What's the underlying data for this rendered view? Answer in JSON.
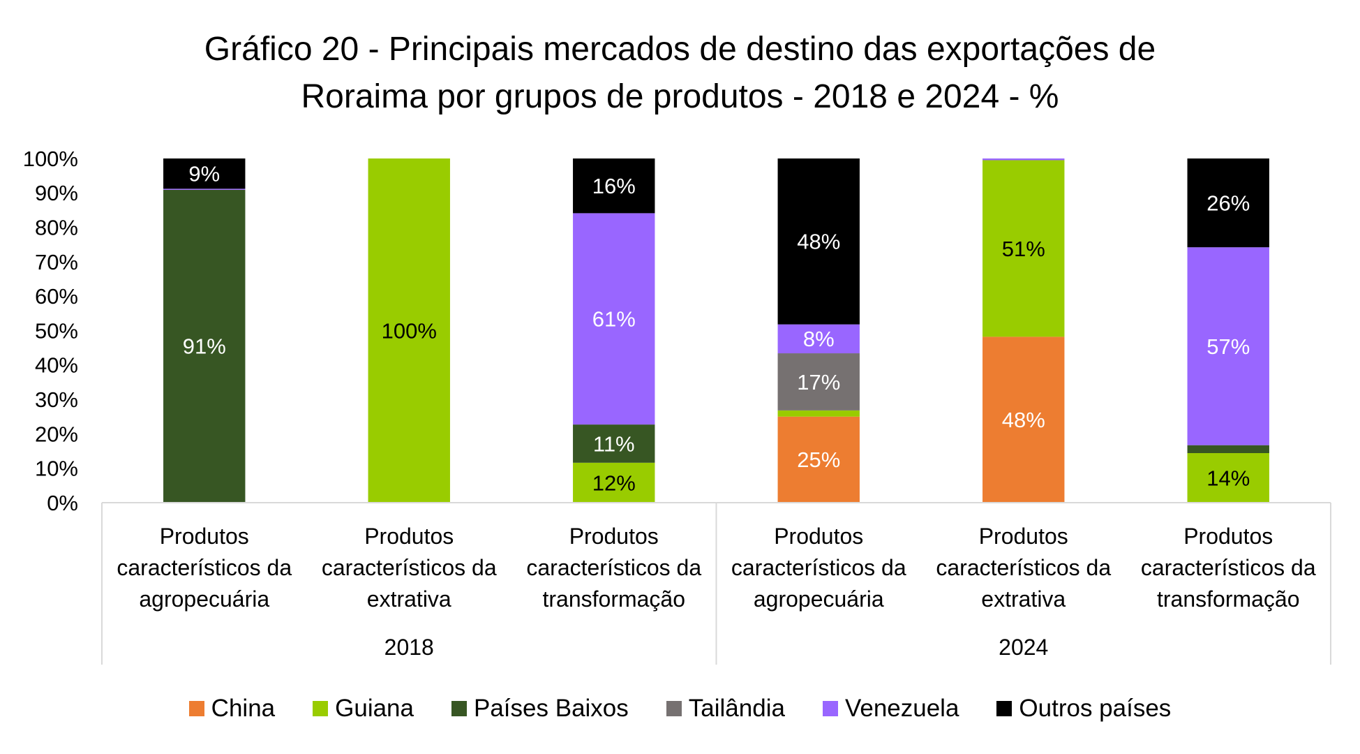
{
  "chart_data": {
    "type": "bar",
    "stacked": true,
    "title": {
      "line1": "Gráfico 20 - Principais mercados de destino das exportações de",
      "line2": "Roraima por grupos de produtos - 2018 e 2024 - %"
    },
    "xlabel": "",
    "ylabel": "",
    "ylim": [
      0,
      100
    ],
    "grid": false,
    "legend_position": "bottom",
    "yticks": [
      {
        "value": 0,
        "label": "0%"
      },
      {
        "value": 10,
        "label": "10%"
      },
      {
        "value": 20,
        "label": "20%"
      },
      {
        "value": 30,
        "label": "30%"
      },
      {
        "value": 40,
        "label": "40%"
      },
      {
        "value": 50,
        "label": "50%"
      },
      {
        "value": 60,
        "label": "60%"
      },
      {
        "value": 70,
        "label": "70%"
      },
      {
        "value": 80,
        "label": "80%"
      },
      {
        "value": 90,
        "label": "90%"
      },
      {
        "value": 100,
        "label": "100%"
      }
    ],
    "groups": [
      {
        "label": "2018",
        "n_categories": 3
      },
      {
        "label": "2024",
        "n_categories": 3
      }
    ],
    "categories": [
      {
        "label_lines": [
          "Produtos",
          "característicos da",
          "agropecuária"
        ]
      },
      {
        "label_lines": [
          "Produtos",
          "característicos da",
          "extrativa"
        ]
      },
      {
        "label_lines": [
          "Produtos",
          "característicos da",
          "transformação"
        ]
      },
      {
        "label_lines": [
          "Produtos",
          "característicos da",
          "agropecuária"
        ]
      },
      {
        "label_lines": [
          "Produtos",
          "característicos da",
          "extrativa"
        ]
      },
      {
        "label_lines": [
          "Produtos",
          "característicos da",
          "transformação"
        ]
      }
    ],
    "series": [
      {
        "name": "China",
        "color": "#ED7D31",
        "label_color": "#FFFFFF",
        "values": [
          0,
          0,
          0,
          25.0,
          48.2,
          0
        ],
        "labels": [
          null,
          null,
          null,
          "25%",
          "48%",
          null
        ]
      },
      {
        "name": "Guiana",
        "color": "#99CC00",
        "label_color": "#000000",
        "values": [
          0.2,
          100,
          11.6,
          1.8,
          51.3,
          14.4
        ],
        "labels": [
          null,
          "100%",
          "12%",
          null,
          "51%",
          "14%"
        ]
      },
      {
        "name": "Países Baixos",
        "color": "#375623",
        "label_color": "#FFFFFF",
        "values": [
          90.7,
          0,
          11.1,
          0,
          0,
          2.3
        ],
        "labels": [
          "91%",
          null,
          "11%",
          null,
          null,
          null
        ]
      },
      {
        "name": "Tailândia",
        "color": "#767171",
        "label_color": "#FFFFFF",
        "values": [
          0,
          0,
          0,
          16.6,
          0,
          0
        ],
        "labels": [
          null,
          null,
          null,
          "17%",
          null,
          null
        ]
      },
      {
        "name": "Venezuela",
        "color": "#9966FF",
        "label_color": "#FFFFFF",
        "values": [
          0.3,
          0,
          61.4,
          8.4,
          0.5,
          57.5
        ],
        "labels": [
          null,
          null,
          "61%",
          "8%",
          null,
          "57%"
        ]
      },
      {
        "name": "Outros países",
        "color": "#000000",
        "label_color": "#FFFFFF",
        "values": [
          8.8,
          0,
          15.9,
          48.2,
          0,
          25.8
        ],
        "labels": [
          "9%",
          null,
          "16%",
          "48%",
          null,
          "26%"
        ]
      }
    ]
  }
}
